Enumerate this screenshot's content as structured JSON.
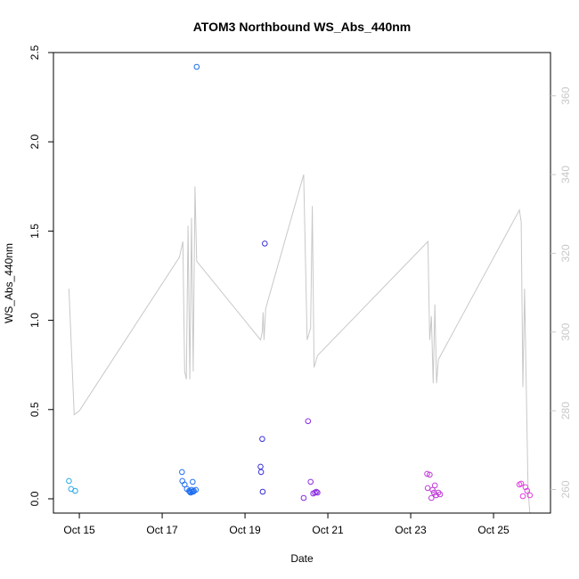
{
  "chart_data": {
    "type": "scatter",
    "title": "ATOM3 Northbound WS_Abs_440nm",
    "xlabel": "Date",
    "ylabel": "WS_Abs_440nm",
    "x_axis": {
      "type": "date",
      "range": [
        "2016-10-14T09:00",
        "2016-10-26T09:00"
      ],
      "ticks": [
        {
          "date": "2016-10-15",
          "label": "Oct 15"
        },
        {
          "date": "2016-10-17",
          "label": "Oct 17"
        },
        {
          "date": "2016-10-19",
          "label": "Oct 19"
        },
        {
          "date": "2016-10-21",
          "label": "Oct 21"
        },
        {
          "date": "2016-10-23",
          "label": "Oct 23"
        },
        {
          "date": "2016-10-25",
          "label": "Oct 25"
        }
      ]
    },
    "y_axis": {
      "range": [
        -0.08,
        2.5
      ],
      "ticks": [
        {
          "value": 0.0,
          "label": "0.0"
        },
        {
          "value": 0.5,
          "label": "0.5"
        },
        {
          "value": 1.0,
          "label": "1.0"
        },
        {
          "value": 1.5,
          "label": "1.5"
        },
        {
          "value": 2.0,
          "label": "2.0"
        },
        {
          "value": 2.5,
          "label": "2.5"
        }
      ]
    },
    "y2_axis": {
      "range": [
        254,
        371
      ],
      "color": "#c8c8c8",
      "ticks": [
        {
          "value": 260,
          "label": "260"
        },
        {
          "value": 280,
          "label": "280"
        },
        {
          "value": 300,
          "label": "300"
        },
        {
          "value": 320,
          "label": "320"
        },
        {
          "value": 340,
          "label": "340"
        },
        {
          "value": 360,
          "label": "360"
        }
      ]
    },
    "points": [
      {
        "date": "2016-10-14T18:00",
        "y": 0.1,
        "color": "#2aa8e8"
      },
      {
        "date": "2016-10-14T19:12",
        "y": 0.055,
        "color": "#2aa8e8"
      },
      {
        "date": "2016-10-14T21:36",
        "y": 0.045,
        "color": "#2aa8e8"
      },
      {
        "date": "2016-10-17T11:30",
        "y": 0.15,
        "color": "#1e6ef0"
      },
      {
        "date": "2016-10-17T11:40",
        "y": 0.1,
        "color": "#1e6ef0"
      },
      {
        "date": "2016-10-17T13:00",
        "y": 0.08,
        "color": "#1e6ef0"
      },
      {
        "date": "2016-10-17T14:20",
        "y": 0.055,
        "color": "#1e6ef0"
      },
      {
        "date": "2016-10-17T15:40",
        "y": 0.045,
        "color": "#1e6ef0"
      },
      {
        "date": "2016-10-17T16:00",
        "y": 0.04,
        "color": "#1e6ef0"
      },
      {
        "date": "2016-10-17T16:30",
        "y": 0.035,
        "color": "#1e6ef0"
      },
      {
        "date": "2016-10-17T17:00",
        "y": 0.05,
        "color": "#1e6ef0"
      },
      {
        "date": "2016-10-17T17:20",
        "y": 0.04,
        "color": "#1e6ef0"
      },
      {
        "date": "2016-10-17T17:40",
        "y": 0.095,
        "color": "#1e6ef0"
      },
      {
        "date": "2016-10-17T18:00",
        "y": 0.04,
        "color": "#1e6ef0"
      },
      {
        "date": "2016-10-17T18:20",
        "y": 0.045,
        "color": "#1e6ef0"
      },
      {
        "date": "2016-10-17T19:30",
        "y": 0.05,
        "color": "#1e6ef0"
      },
      {
        "date": "2016-10-17T20:00",
        "y": 2.42,
        "color": "#1e6ef0"
      },
      {
        "date": "2016-10-19T09:00",
        "y": 0.18,
        "color": "#3a2fd8"
      },
      {
        "date": "2016-10-19T09:20",
        "y": 0.15,
        "color": "#3a2fd8"
      },
      {
        "date": "2016-10-19T10:00",
        "y": 0.335,
        "color": "#3a2fd8"
      },
      {
        "date": "2016-10-19T10:15",
        "y": 0.04,
        "color": "#3a2fd8"
      },
      {
        "date": "2016-10-19T11:30",
        "y": 1.43,
        "color": "#3a2fd8"
      },
      {
        "date": "2016-10-20T10:00",
        "y": 0.005,
        "color": "#8a2be2"
      },
      {
        "date": "2016-10-20T12:30",
        "y": 0.435,
        "color": "#8a2be2"
      },
      {
        "date": "2016-10-20T14:00",
        "y": 0.095,
        "color": "#8a2be2"
      },
      {
        "date": "2016-10-20T15:30",
        "y": 0.03,
        "color": "#8a2be2"
      },
      {
        "date": "2016-10-20T16:30",
        "y": 0.035,
        "color": "#8a2be2"
      },
      {
        "date": "2016-10-20T17:20",
        "y": 0.04,
        "color": "#8a2be2"
      },
      {
        "date": "2016-10-20T18:00",
        "y": 0.035,
        "color": "#8a2be2"
      },
      {
        "date": "2016-10-23T09:30",
        "y": 0.14,
        "color": "#c03ad8"
      },
      {
        "date": "2016-10-23T09:50",
        "y": 0.06,
        "color": "#c03ad8"
      },
      {
        "date": "2016-10-23T11:00",
        "y": 0.135,
        "color": "#c03ad8"
      },
      {
        "date": "2016-10-23T12:00",
        "y": 0.005,
        "color": "#c03ad8"
      },
      {
        "date": "2016-10-23T12:40",
        "y": 0.05,
        "color": "#c03ad8"
      },
      {
        "date": "2016-10-23T13:30",
        "y": 0.035,
        "color": "#c03ad8"
      },
      {
        "date": "2016-10-23T14:00",
        "y": 0.075,
        "color": "#c03ad8"
      },
      {
        "date": "2016-10-23T14:40",
        "y": 0.02,
        "color": "#c03ad8"
      },
      {
        "date": "2016-10-23T16:00",
        "y": 0.035,
        "color": "#c03ad8"
      },
      {
        "date": "2016-10-23T17:00",
        "y": 0.025,
        "color": "#c03ad8"
      },
      {
        "date": "2016-10-25T15:00",
        "y": 0.08,
        "color": "#e040e0"
      },
      {
        "date": "2016-10-25T16:00",
        "y": 0.085,
        "color": "#e040e0"
      },
      {
        "date": "2016-10-25T17:00",
        "y": 0.015,
        "color": "#e040e0"
      },
      {
        "date": "2016-10-25T18:30",
        "y": 0.065,
        "color": "#e040e0"
      },
      {
        "date": "2016-10-25T19:30",
        "y": 0.045,
        "color": "#e040e0"
      },
      {
        "date": "2016-10-25T21:00",
        "y": 0.02,
        "color": "#e040e0"
      }
    ],
    "secondary_line": {
      "color": "#c8c8c8",
      "points": [
        [
          "2016-10-14T18:00",
          311
        ],
        [
          "2016-10-14T19:00",
          300
        ],
        [
          "2016-10-14T21:00",
          279
        ],
        [
          "2016-10-15T00:00",
          280
        ],
        [
          "2016-10-17T10:00",
          319
        ],
        [
          "2016-10-17T12:00",
          323
        ],
        [
          "2016-10-17T13:00",
          290
        ],
        [
          "2016-10-17T14:00",
          288
        ],
        [
          "2016-10-17T15:00",
          327
        ],
        [
          "2016-10-17T16:00",
          288
        ],
        [
          "2016-10-17T17:00",
          329
        ],
        [
          "2016-10-17T18:00",
          290
        ],
        [
          "2016-10-17T19:00",
          337
        ],
        [
          "2016-10-17T20:00",
          318
        ],
        [
          "2016-10-19T09:00",
          298
        ],
        [
          "2016-10-19T10:00",
          300
        ],
        [
          "2016-10-19T10:30",
          305
        ],
        [
          "2016-10-19T11:00",
          298
        ],
        [
          "2016-10-19T12:00",
          306
        ],
        [
          "2016-10-20T10:00",
          340
        ],
        [
          "2016-10-20T12:00",
          298
        ],
        [
          "2016-10-20T14:00",
          301
        ],
        [
          "2016-10-20T15:00",
          332
        ],
        [
          "2016-10-20T16:00",
          291
        ],
        [
          "2016-10-20T18:00",
          294
        ],
        [
          "2016-10-23T10:00",
          323
        ],
        [
          "2016-10-23T11:00",
          298
        ],
        [
          "2016-10-23T12:00",
          304
        ],
        [
          "2016-10-23T13:00",
          287
        ],
        [
          "2016-10-23T14:00",
          307
        ],
        [
          "2016-10-23T15:00",
          287
        ],
        [
          "2016-10-23T16:00",
          293
        ],
        [
          "2016-10-25T15:00",
          331
        ],
        [
          "2016-10-25T16:00",
          328
        ],
        [
          "2016-10-25T17:00",
          286
        ],
        [
          "2016-10-25T18:00",
          311
        ],
        [
          "2016-10-25T20:00",
          260
        ],
        [
          "2016-10-25T21:00",
          254
        ]
      ]
    }
  }
}
